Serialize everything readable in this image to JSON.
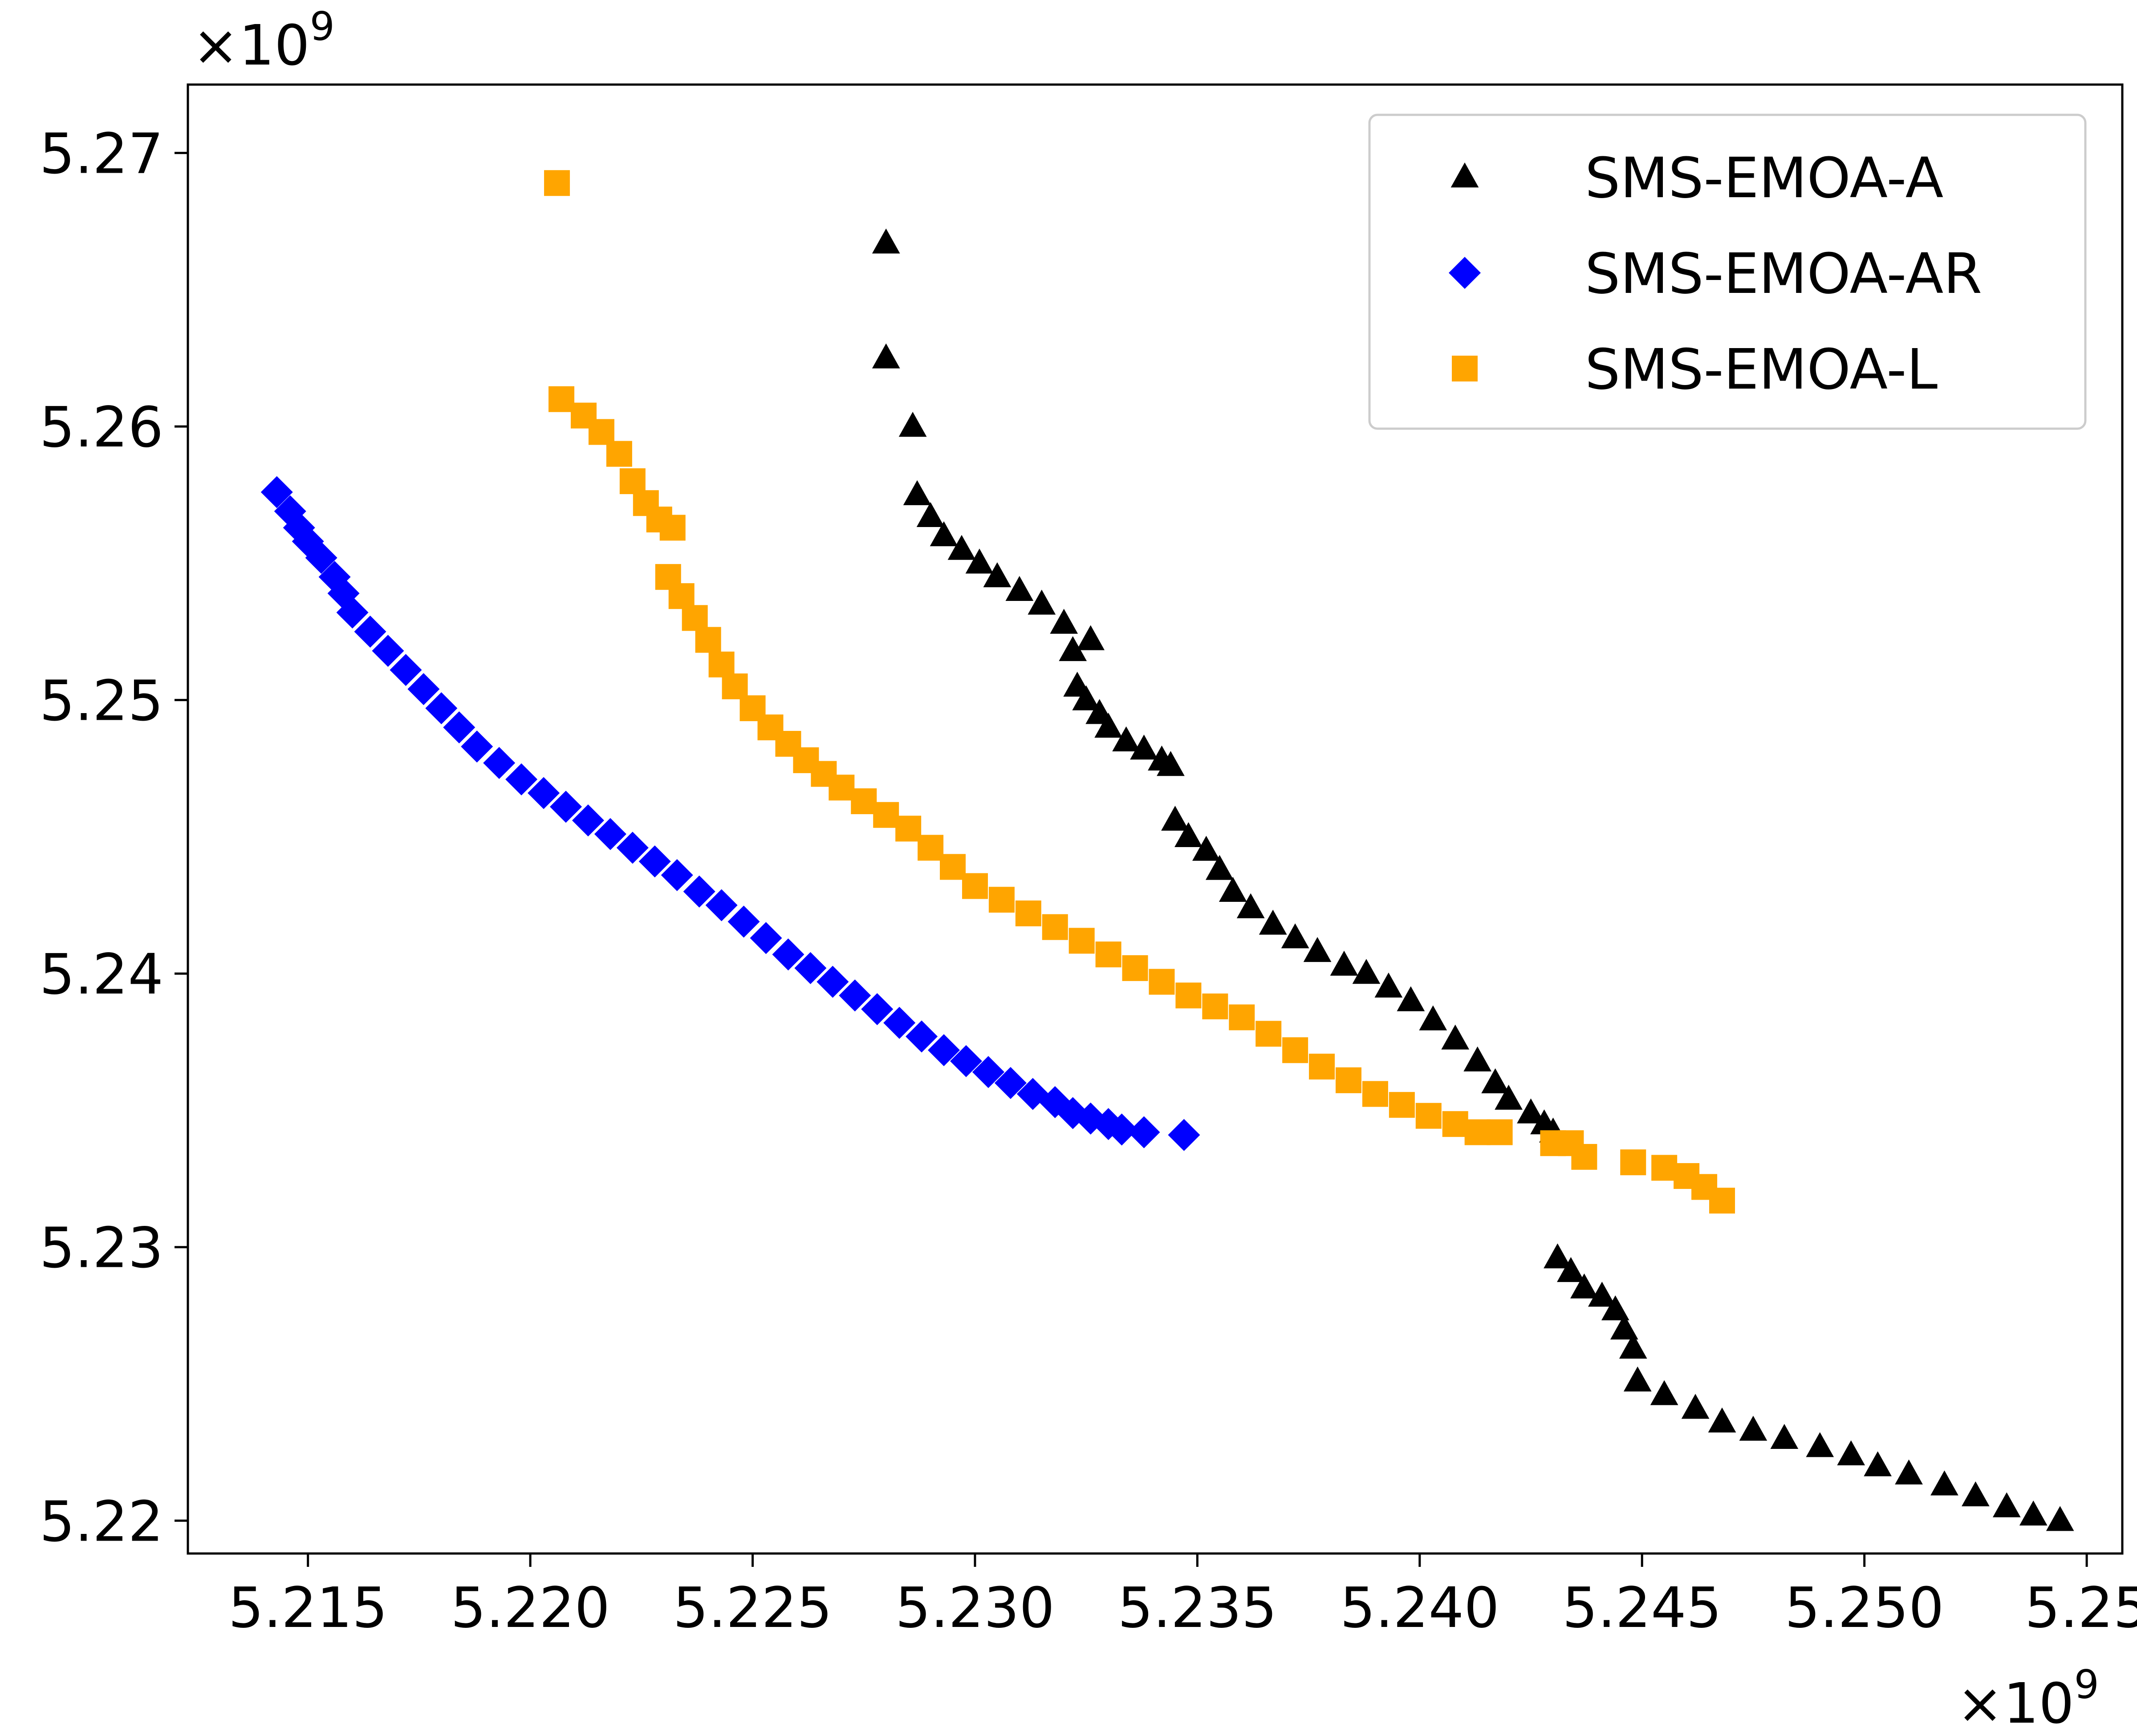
{
  "chart_data": {
    "type": "scatter",
    "title": "",
    "xlabel": "",
    "ylabel": "",
    "x_offset_text": {
      "base": "×10",
      "exp": "9"
    },
    "y_offset_text": {
      "base": "×10",
      "exp": "9"
    },
    "xlim": [
      5.2123,
      5.2558
    ],
    "ylim": [
      5.2188,
      5.2725
    ],
    "x_ticks": [
      {
        "value": 5.215,
        "label": "5.215"
      },
      {
        "value": 5.22,
        "label": "5.220"
      },
      {
        "value": 5.225,
        "label": "5.225"
      },
      {
        "value": 5.23,
        "label": "5.230"
      },
      {
        "value": 5.235,
        "label": "5.235"
      },
      {
        "value": 5.24,
        "label": "5.240"
      },
      {
        "value": 5.245,
        "label": "5.245"
      },
      {
        "value": 5.25,
        "label": "5.250"
      },
      {
        "value": 5.255,
        "label": "5.25"
      }
    ],
    "y_ticks": [
      {
        "value": 5.22,
        "label": "5.22"
      },
      {
        "value": 5.23,
        "label": "5.23"
      },
      {
        "value": 5.24,
        "label": "5.24"
      },
      {
        "value": 5.25,
        "label": "5.25"
      },
      {
        "value": 5.26,
        "label": "5.26"
      },
      {
        "value": 5.27,
        "label": "5.27"
      }
    ],
    "legend": {
      "location": "upper right"
    },
    "series": [
      {
        "name": "SMS-EMOA-A",
        "marker": "triangle",
        "color": "#000000",
        "points": [
          [
            5.228,
            5.2667
          ],
          [
            5.228,
            5.2625
          ],
          [
            5.2286,
            5.26
          ],
          [
            5.2287,
            5.2575
          ],
          [
            5.229,
            5.2567
          ],
          [
            5.2293,
            5.256
          ],
          [
            5.2297,
            5.2555
          ],
          [
            5.2301,
            5.255
          ],
          [
            5.2305,
            5.2545
          ],
          [
            5.231,
            5.254
          ],
          [
            5.2315,
            5.2535
          ],
          [
            5.232,
            5.2528
          ],
          [
            5.2326,
            5.2522
          ],
          [
            5.2322,
            5.2518
          ],
          [
            5.2323,
            5.2505
          ],
          [
            5.2325,
            5.25
          ],
          [
            5.2328,
            5.2495
          ],
          [
            5.233,
            5.249
          ],
          [
            5.2334,
            5.2485
          ],
          [
            5.2338,
            5.2482
          ],
          [
            5.2342,
            5.2478
          ],
          [
            5.2344,
            5.2476
          ],
          [
            5.2345,
            5.2456
          ],
          [
            5.2348,
            5.245
          ],
          [
            5.2352,
            5.2445
          ],
          [
            5.2355,
            5.2438
          ],
          [
            5.2358,
            5.243
          ],
          [
            5.2362,
            5.2424
          ],
          [
            5.2367,
            5.2418
          ],
          [
            5.2372,
            5.2413
          ],
          [
            5.2377,
            5.2408
          ],
          [
            5.2383,
            5.2403
          ],
          [
            5.2388,
            5.24
          ],
          [
            5.2393,
            5.2395
          ],
          [
            5.2398,
            5.239
          ],
          [
            5.2403,
            5.2383
          ],
          [
            5.2408,
            5.2376
          ],
          [
            5.2413,
            5.2368
          ],
          [
            5.2417,
            5.236
          ],
          [
            5.242,
            5.2354
          ],
          [
            5.2425,
            5.2349
          ],
          [
            5.2428,
            5.2345
          ],
          [
            5.243,
            5.2342
          ],
          [
            5.2431,
            5.2296
          ],
          [
            5.2434,
            5.2291
          ],
          [
            5.2437,
            5.2285
          ],
          [
            5.2441,
            5.2282
          ],
          [
            5.2444,
            5.2277
          ],
          [
            5.2446,
            5.227
          ],
          [
            5.2448,
            5.2263
          ],
          [
            5.2449,
            5.2251
          ],
          [
            5.2455,
            5.2246
          ],
          [
            5.2462,
            5.2241
          ],
          [
            5.2468,
            5.2236
          ],
          [
            5.2475,
            5.2233
          ],
          [
            5.2482,
            5.223
          ],
          [
            5.249,
            5.2227
          ],
          [
            5.2497,
            5.2224
          ],
          [
            5.2503,
            5.222
          ],
          [
            5.251,
            5.2217
          ],
          [
            5.2518,
            5.2213
          ],
          [
            5.2525,
            5.2209
          ],
          [
            5.2532,
            5.2205
          ],
          [
            5.2538,
            5.2202
          ],
          [
            5.2544,
            5.22
          ]
        ]
      },
      {
        "name": "SMS-EMOA-AR",
        "marker": "diamond",
        "color": "#0000ff",
        "points": [
          [
            5.2143,
            5.2576
          ],
          [
            5.2146,
            5.2569
          ],
          [
            5.2148,
            5.2563
          ],
          [
            5.215,
            5.2558
          ],
          [
            5.2153,
            5.2552
          ],
          [
            5.2156,
            5.2545
          ],
          [
            5.2158,
            5.2539
          ],
          [
            5.216,
            5.2532
          ],
          [
            5.2164,
            5.2525
          ],
          [
            5.2168,
            5.2518
          ],
          [
            5.2172,
            5.2511
          ],
          [
            5.2176,
            5.2504
          ],
          [
            5.218,
            5.2497
          ],
          [
            5.2184,
            5.249
          ],
          [
            5.2188,
            5.2483
          ],
          [
            5.2193,
            5.2477
          ],
          [
            5.2198,
            5.2471
          ],
          [
            5.2203,
            5.2466
          ],
          [
            5.2208,
            5.2461
          ],
          [
            5.2213,
            5.2456
          ],
          [
            5.2218,
            5.2451
          ],
          [
            5.2223,
            5.2446
          ],
          [
            5.2228,
            5.2441
          ],
          [
            5.2233,
            5.2436
          ],
          [
            5.2238,
            5.243
          ],
          [
            5.2243,
            5.2425
          ],
          [
            5.2248,
            5.2419
          ],
          [
            5.2253,
            5.2413
          ],
          [
            5.2258,
            5.2407
          ],
          [
            5.2263,
            5.2402
          ],
          [
            5.2268,
            5.2397
          ],
          [
            5.2273,
            5.2392
          ],
          [
            5.2278,
            5.2387
          ],
          [
            5.2283,
            5.2382
          ],
          [
            5.2288,
            5.2377
          ],
          [
            5.2293,
            5.2372
          ],
          [
            5.2298,
            5.2368
          ],
          [
            5.2303,
            5.2364
          ],
          [
            5.2308,
            5.236
          ],
          [
            5.2313,
            5.2356
          ],
          [
            5.2318,
            5.2353
          ],
          [
            5.2322,
            5.2349
          ],
          [
            5.2326,
            5.2347
          ],
          [
            5.233,
            5.2345
          ],
          [
            5.2333,
            5.2343
          ],
          [
            5.2338,
            5.2342
          ],
          [
            5.2347,
            5.2341
          ]
        ]
      },
      {
        "name": "SMS-EMOA-L",
        "marker": "square",
        "color": "#ffa500",
        "points": [
          [
            5.2206,
            5.2689
          ],
          [
            5.2207,
            5.261
          ],
          [
            5.2212,
            5.2604
          ],
          [
            5.2216,
            5.2598
          ],
          [
            5.222,
            5.259
          ],
          [
            5.2223,
            5.258
          ],
          [
            5.2226,
            5.2572
          ],
          [
            5.2229,
            5.2566
          ],
          [
            5.2232,
            5.2563
          ],
          [
            5.2231,
            5.2545
          ],
          [
            5.2234,
            5.2538
          ],
          [
            5.2237,
            5.253
          ],
          [
            5.224,
            5.2522
          ],
          [
            5.2243,
            5.2513
          ],
          [
            5.2246,
            5.2505
          ],
          [
            5.225,
            5.2497
          ],
          [
            5.2254,
            5.249
          ],
          [
            5.2258,
            5.2484
          ],
          [
            5.2262,
            5.2478
          ],
          [
            5.2266,
            5.2473
          ],
          [
            5.227,
            5.2468
          ],
          [
            5.2275,
            5.2463
          ],
          [
            5.228,
            5.2458
          ],
          [
            5.2285,
            5.2453
          ],
          [
            5.229,
            5.2446
          ],
          [
            5.2295,
            5.2439
          ],
          [
            5.23,
            5.2432
          ],
          [
            5.2306,
            5.2427
          ],
          [
            5.2312,
            5.2422
          ],
          [
            5.2318,
            5.2417
          ],
          [
            5.2324,
            5.2412
          ],
          [
            5.233,
            5.2407
          ],
          [
            5.2336,
            5.2402
          ],
          [
            5.2342,
            5.2397
          ],
          [
            5.2348,
            5.2392
          ],
          [
            5.2354,
            5.2388
          ],
          [
            5.236,
            5.2384
          ],
          [
            5.2366,
            5.2378
          ],
          [
            5.2372,
            5.2372
          ],
          [
            5.2378,
            5.2366
          ],
          [
            5.2384,
            5.2361
          ],
          [
            5.239,
            5.2356
          ],
          [
            5.2396,
            5.2352
          ],
          [
            5.2402,
            5.2348
          ],
          [
            5.2408,
            5.2345
          ],
          [
            5.2413,
            5.2342
          ],
          [
            5.2418,
            5.2342
          ],
          [
            5.243,
            5.2338
          ],
          [
            5.2434,
            5.2338
          ],
          [
            5.2437,
            5.2333
          ],
          [
            5.2448,
            5.2331
          ],
          [
            5.2455,
            5.2329
          ],
          [
            5.246,
            5.2326
          ],
          [
            5.2464,
            5.2322
          ],
          [
            5.2468,
            5.2317
          ]
        ]
      }
    ]
  }
}
